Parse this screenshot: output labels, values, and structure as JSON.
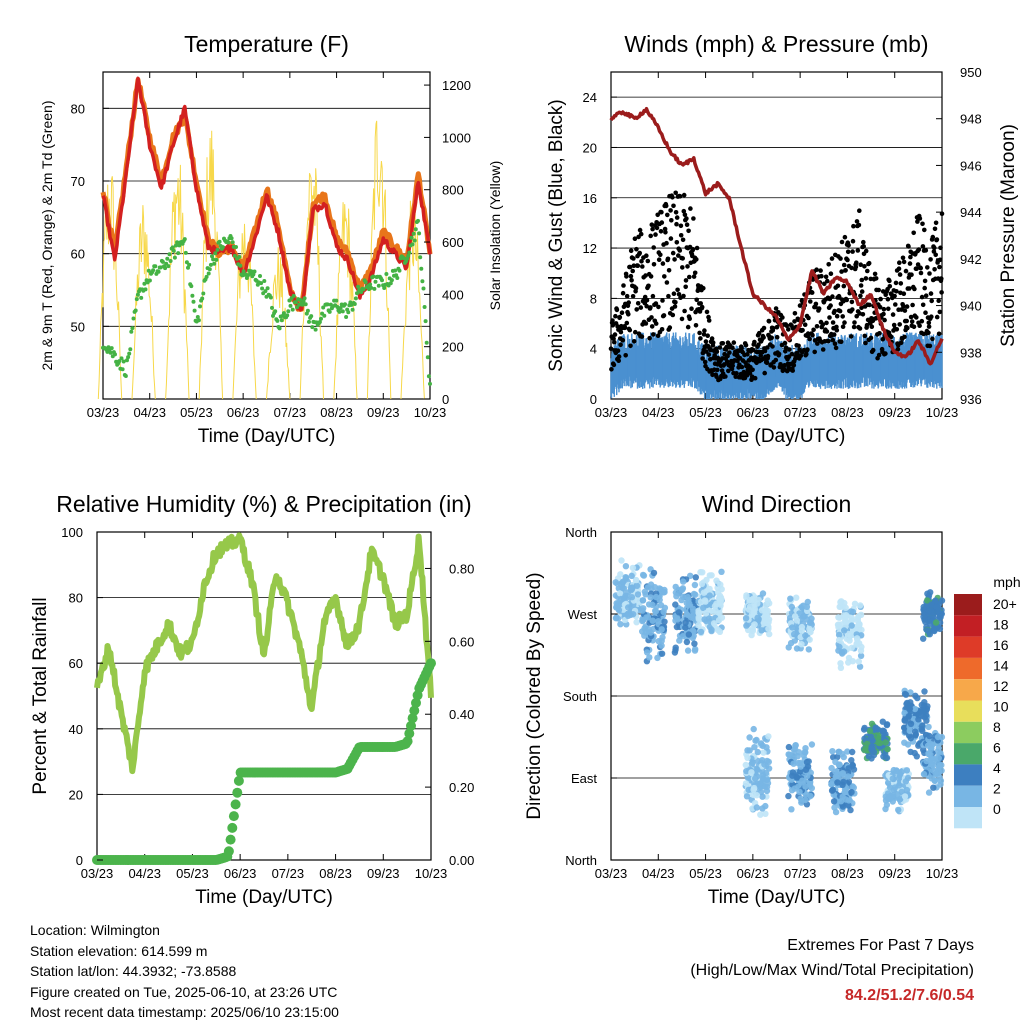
{
  "colors": {
    "temp9m": "#e8751a",
    "temp2m": "#d32020",
    "dew": "#44b244",
    "solar": "#f7d84a",
    "gust": "#000000",
    "wind": "#4a90d0",
    "pressure": "#9b1c1c",
    "rh": "#96c84a",
    "rain": "#4cb44c",
    "extremes": "#c62828"
  },
  "x_ticks": [
    "03/23",
    "04/23",
    "05/23",
    "06/23",
    "07/23",
    "08/23",
    "09/23",
    "10/23"
  ],
  "chart_data": [
    {
      "id": "temperature",
      "type": "line",
      "title": "Temperature (F)",
      "xlabel": "Time (Day/UTC)",
      "ylabel_left": "2m & 9m T (Red, Orange) & 2m Td (Green)",
      "ylabel_right": "Solar Insolation (Yellow)",
      "ylim": [
        40,
        85
      ],
      "yticks": [
        50,
        60,
        70,
        80
      ],
      "ylim_right": [
        0,
        1250
      ],
      "yticks_right": [
        0,
        200,
        400,
        600,
        800,
        1000,
        1200
      ],
      "grid": true,
      "x": [
        0,
        0.25,
        0.5,
        0.75,
        1,
        1.25,
        1.5,
        1.75,
        2,
        2.25,
        2.5,
        2.75,
        3,
        3.25,
        3.5,
        3.75,
        4,
        4.25,
        4.5,
        4.75,
        5,
        5.25,
        5.5,
        5.75,
        6,
        6.25,
        6.5,
        6.75,
        7
      ],
      "series": [
        {
          "name": "9m T",
          "values": [
            69,
            60,
            72,
            84,
            76,
            70,
            76,
            79,
            70,
            62,
            60,
            61,
            58,
            63,
            69,
            64,
            55,
            52,
            67,
            68,
            62,
            60,
            55,
            58,
            63,
            61,
            59,
            71,
            60
          ]
        },
        {
          "name": "2m T",
          "values": [
            68,
            59,
            71,
            84,
            75,
            69,
            75,
            80,
            69,
            61,
            60,
            61,
            57,
            62,
            68,
            63,
            55,
            52,
            66,
            67,
            61,
            59,
            54,
            57,
            62,
            60,
            58,
            70,
            60
          ]
        },
        {
          "name": "2m Td",
          "values": [
            48,
            46,
            44,
            54,
            57,
            58,
            60,
            62,
            50,
            58,
            61,
            62,
            57,
            57,
            55,
            50,
            53,
            54,
            50,
            52,
            53,
            52,
            55,
            56,
            56,
            57,
            60,
            64,
            42
          ]
        },
        {
          "name": "Solar Insolation",
          "axis": "right",
          "peaks": [
            950,
            800,
            1000,
            1100,
            780,
            600,
            1050,
            830,
            1250,
            800
          ]
        }
      ]
    },
    {
      "id": "winds",
      "type": "scatter",
      "title": "Winds (mph) & Pressure (mb)",
      "xlabel": "Time (Day/UTC)",
      "ylabel_left": "Sonic Wind & Gust (Blue, Black)",
      "ylabel_right": "Station Pressure (Maroon)",
      "ylim": [
        0,
        26
      ],
      "yticks": [
        0,
        4,
        8,
        12,
        16,
        20,
        24
      ],
      "ylim_right": [
        936,
        950
      ],
      "yticks_right": [
        936,
        938,
        940,
        942,
        944,
        946,
        948,
        950
      ],
      "grid": true,
      "x": [
        0,
        0.25,
        0.5,
        0.75,
        1,
        1.25,
        1.5,
        1.75,
        2,
        2.25,
        2.5,
        2.75,
        3,
        3.25,
        3.5,
        3.75,
        4,
        4.25,
        4.5,
        4.75,
        5,
        5.25,
        5.5,
        5.75,
        6,
        6.25,
        6.5,
        6.75,
        7
      ],
      "series": [
        {
          "name": "Gust",
          "values": [
            4,
            6,
            9,
            9,
            10,
            11,
            11,
            10,
            5,
            3,
            3,
            3,
            3,
            4,
            5,
            4,
            5,
            7,
            7,
            8,
            9,
            10,
            7,
            6,
            7,
            8,
            10,
            8,
            11
          ]
        },
        {
          "name": "Sonic Wind",
          "values": [
            2,
            3,
            3,
            3,
            3,
            3,
            3,
            3,
            2,
            2,
            2,
            2,
            2,
            2,
            3,
            2,
            2,
            3,
            3,
            3,
            3,
            3,
            3,
            3,
            3,
            3,
            3,
            3,
            3
          ]
        },
        {
          "name": "Station Pressure",
          "axis": "right",
          "values": [
            948.0,
            948.3,
            948.0,
            948.4,
            947.6,
            946.6,
            946.0,
            946.3,
            944.8,
            945.2,
            944.6,
            942.5,
            940.5,
            940.0,
            939.5,
            938.5,
            939.2,
            941.5,
            940.5,
            941.2,
            941.0,
            940.0,
            940.5,
            939.0,
            938.0,
            937.8,
            938.5,
            937.5,
            938.6
          ]
        }
      ]
    },
    {
      "id": "humidity",
      "type": "line",
      "title": "Relative Humidity (%) & Precipitation (in)",
      "xlabel": "Time (Day/UTC)",
      "ylabel_left": "Percent & Total Rainfall",
      "ylim": [
        0,
        100
      ],
      "yticks": [
        0,
        20,
        40,
        60,
        80,
        100
      ],
      "ylim_right": [
        0,
        0.9
      ],
      "yticks_right": [
        "0.00",
        "0.20",
        "0.40",
        "0.60",
        "0.80"
      ],
      "grid": true,
      "x": [
        0,
        0.25,
        0.5,
        0.75,
        1,
        1.25,
        1.5,
        1.75,
        2,
        2.25,
        2.5,
        2.75,
        3,
        3.25,
        3.5,
        3.75,
        4,
        4.25,
        4.5,
        4.75,
        5,
        5.25,
        5.5,
        5.75,
        6,
        6.25,
        6.5,
        6.75,
        7
      ],
      "series": [
        {
          "name": "RH",
          "values": [
            52,
            65,
            45,
            28,
            58,
            65,
            72,
            63,
            66,
            84,
            94,
            96,
            98,
            85,
            62,
            88,
            78,
            65,
            46,
            72,
            80,
            65,
            72,
            94,
            86,
            72,
            75,
            98,
            50
          ]
        },
        {
          "name": "Precipitation",
          "axis": "right",
          "values": [
            0,
            0,
            0,
            0,
            0,
            0,
            0,
            0,
            0,
            0,
            0,
            0.01,
            0.24,
            0.24,
            0.24,
            0.24,
            0.24,
            0.24,
            0.24,
            0.24,
            0.24,
            0.25,
            0.31,
            0.31,
            0.31,
            0.31,
            0.32,
            0.47,
            0.54
          ]
        }
      ]
    },
    {
      "id": "direction",
      "type": "scatter",
      "title": "Wind Direction",
      "xlabel": "Time (Day/UTC)",
      "ylabel_left": "Direction (Colored By Speed)",
      "yticks": [
        "North",
        "East",
        "South",
        "West",
        "North"
      ],
      "ylim": [
        0,
        360
      ],
      "grid": true,
      "clusters": [
        {
          "x": 0.35,
          "dir": 290,
          "spread": 45,
          "speed": 2
        },
        {
          "x": 0.9,
          "dir": 265,
          "spread": 60,
          "speed": 3
        },
        {
          "x": 1.6,
          "dir": 270,
          "spread": 50,
          "speed": 3
        },
        {
          "x": 2.1,
          "dir": 280,
          "spread": 40,
          "speed": 1
        },
        {
          "x": 3.1,
          "dir": 270,
          "spread": 25,
          "speed": 1
        },
        {
          "x": 3.1,
          "dir": 95,
          "spread": 50,
          "speed": 2
        },
        {
          "x": 4.0,
          "dir": 260,
          "spread": 30,
          "speed": 2
        },
        {
          "x": 4.0,
          "dir": 90,
          "spread": 40,
          "speed": 3
        },
        {
          "x": 4.9,
          "dir": 85,
          "spread": 40,
          "speed": 3
        },
        {
          "x": 5.05,
          "dir": 250,
          "spread": 40,
          "speed": 1
        },
        {
          "x": 5.6,
          "dir": 130,
          "spread": 25,
          "speed": 5
        },
        {
          "x": 6.05,
          "dir": 80,
          "spread": 30,
          "speed": 2
        },
        {
          "x": 6.45,
          "dir": 150,
          "spread": 40,
          "speed": 4
        },
        {
          "x": 6.85,
          "dir": 270,
          "spread": 30,
          "speed": 5
        },
        {
          "x": 6.85,
          "dir": 110,
          "spread": 40,
          "speed": 3
        }
      ],
      "colorbar": {
        "title": "mph",
        "labels": [
          "20+",
          "18",
          "16",
          "14",
          "12",
          "10",
          "8",
          "6",
          "4",
          "2",
          "0"
        ],
        "colors": [
          "#9b1c1c",
          "#c21f24",
          "#de3b28",
          "#ee6a2b",
          "#f7a84a",
          "#e8de5b",
          "#8ccc5f",
          "#4aa86a",
          "#3d7fc0",
          "#78b6e4",
          "#bfe4f7"
        ]
      }
    }
  ],
  "footer": {
    "location": "Location: Wilmington",
    "elevation": "Station elevation: 614.599 m",
    "latlon": "Station lat/lon: 44.3932; -73.8588",
    "created": "Figure created on Tue, 2025-06-10, at 23:26 UTC",
    "recent": "Most recent data timestamp: 2025/06/10 23:15:00",
    "extremes_title": "Extremes For Past 7 Days",
    "extremes_sub": "(High/Low/Max Wind/Total Precipitation)",
    "extremes_values": "84.2/51.2/7.6/0.54"
  }
}
